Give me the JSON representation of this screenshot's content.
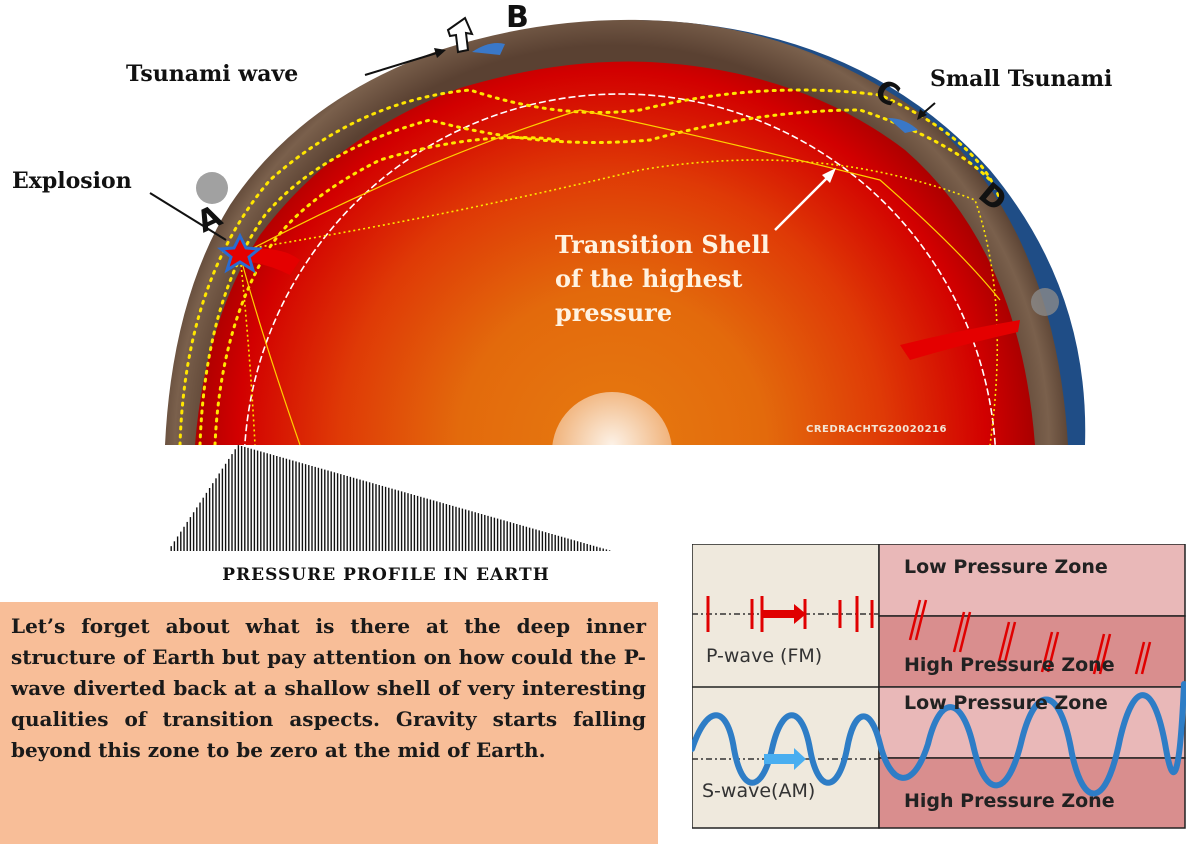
{
  "diagram": {
    "labels": {
      "tsunami_wave": "Tsunami wave",
      "small_tsunami": "Small Tsunami",
      "explosion": "Explosion",
      "point_a": "A",
      "point_b": "B",
      "point_c": "C",
      "point_d": "D",
      "transition_shell_line1": "Transition Shell",
      "transition_shell_line2": "of the highest",
      "transition_shell_line3": "pressure",
      "watermark": "CREDRACHTG20020216"
    },
    "pressure_profile_title": "PRESSURE PROFILE IN EARTH",
    "explanation": "Let’s forget about what is there at the deep inner structure of Earth but pay attention on how could the P-wave diverted back at a shallow shell of very interesting qualities of transition aspects. Gravity starts falling beyond this zone to be zero at the mid of Earth.",
    "wave_panel": {
      "zones": [
        "Low Pressure Zone",
        "High Pressure Zone",
        "Low Pressure Zone",
        "High Pressure Zone"
      ],
      "p_wave_label": "P-wave (FM)",
      "s_wave_label": "S-wave(AM)"
    },
    "colors": {
      "core_center": "#e8700e",
      "core_edge": "#d20000",
      "crust": "#6e5442",
      "ocean": "#1f4d86",
      "explain_box": "#f8be98",
      "wave_panel_left": "#efe9dd",
      "zone_low": "#e9b8b8",
      "zone_high": "#d98e8e",
      "s_wave": "#2e7dc6",
      "p_wave": "#e00000"
    }
  }
}
